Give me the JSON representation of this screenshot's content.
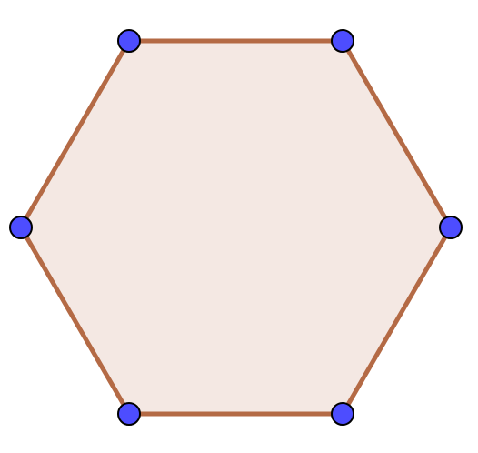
{
  "diagram": {
    "shape": "regular hexagon",
    "vertex_count": 6,
    "colors": {
      "background": "#ffffff",
      "fill": "#f4e8e3",
      "edge": "#b46a45",
      "vertex_fill": "#4d4dff",
      "vertex_stroke": "#000000"
    }
  }
}
